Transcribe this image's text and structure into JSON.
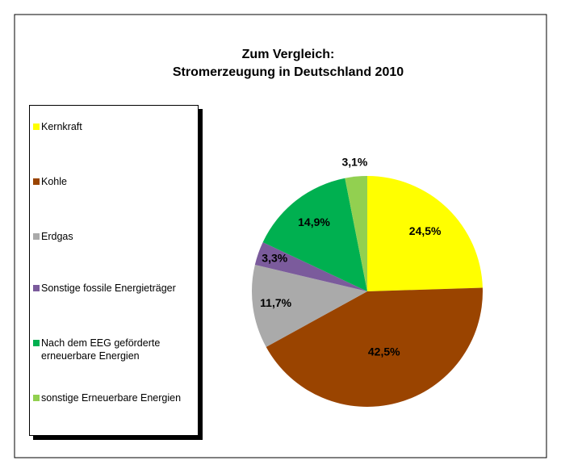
{
  "chart_data": {
    "type": "pie",
    "title": "Zum Vergleich:",
    "subtitle": "Stromerzeugung in Deutschland 2010",
    "categories": [
      "Kernkraft",
      "Kohle",
      "Erdgas",
      "Sonstige fossile Energieträger",
      "Nach dem EEG geförderte erneuerbare Energien",
      "sonstige Erneuerbare Energien"
    ],
    "values": [
      24.5,
      42.5,
      11.7,
      3.3,
      14.9,
      3.1
    ],
    "value_labels": [
      "24,5%",
      "42,5%",
      "11,7%",
      "3,3%",
      "14,9%",
      "3,1%"
    ],
    "colors": [
      "#ffff00",
      "#9a4400",
      "#aaaaaa",
      "#7b5b9c",
      "#00b050",
      "#92d050"
    ],
    "legend": "left"
  }
}
